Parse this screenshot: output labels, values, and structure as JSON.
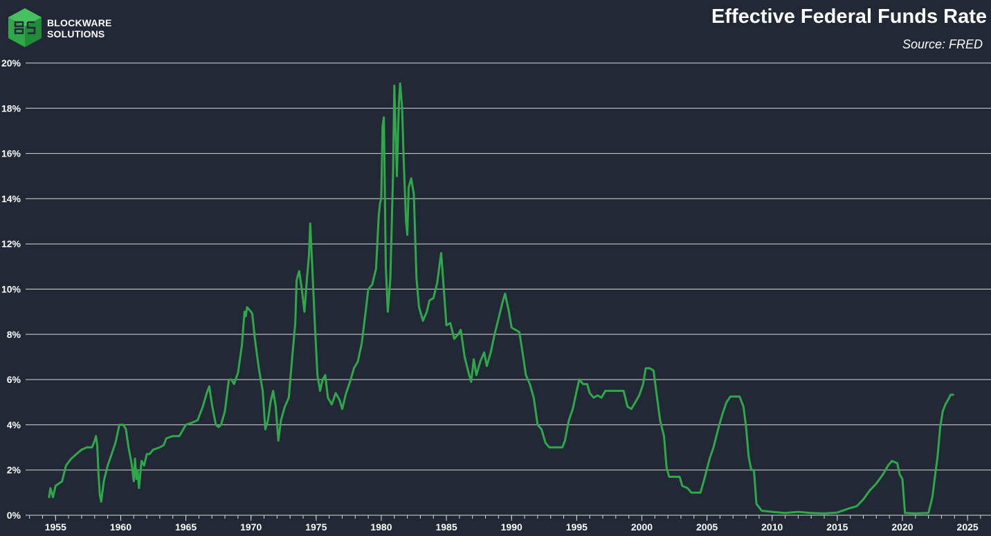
{
  "branding": {
    "line1": "BLOCKWARE",
    "line2": "SOLUTIONS"
  },
  "colors": {
    "background": "#222836",
    "line": "#2fa84a",
    "grid": "#d9d9d9",
    "logo": "#2fa84a",
    "text": "#ffffff"
  },
  "chart_data": {
    "type": "line",
    "title": "Effective Federal Funds Rate",
    "subtitle": "Source: FRED",
    "xlabel": "",
    "ylabel": "",
    "xlim": [
      1952.7,
      2026.8
    ],
    "ylim": [
      0,
      20
    ],
    "grid": true,
    "y_ticks": [
      0,
      2,
      4,
      6,
      8,
      10,
      12,
      14,
      16,
      18,
      20
    ],
    "y_tick_labels": [
      "0%",
      "2%",
      "4%",
      "6%",
      "8%",
      "10%",
      "12%",
      "14%",
      "16%",
      "18%",
      "20%"
    ],
    "x_ticks": [
      1955,
      1960,
      1965,
      1970,
      1975,
      1980,
      1985,
      1990,
      1995,
      2000,
      2005,
      2010,
      2015,
      2020,
      2025
    ],
    "x_tick_labels": [
      "1955",
      "1960",
      "1965",
      "1970",
      "1975",
      "1980",
      "1985",
      "1990",
      "1995",
      "2000",
      "2005",
      "2010",
      "2015",
      "2020",
      "2025"
    ],
    "series": [
      {
        "points": [
          [
            1954.5,
            0.8
          ],
          [
            1954.6,
            1.2
          ],
          [
            1954.8,
            0.8
          ],
          [
            1955.0,
            1.3
          ],
          [
            1955.5,
            1.5
          ],
          [
            1955.8,
            2.2
          ],
          [
            1956.2,
            2.5
          ],
          [
            1956.6,
            2.7
          ],
          [
            1957.0,
            2.9
          ],
          [
            1957.4,
            3.0
          ],
          [
            1957.8,
            3.0
          ],
          [
            1958.0,
            3.3
          ],
          [
            1958.1,
            3.5
          ],
          [
            1958.2,
            3.1
          ],
          [
            1958.3,
            1.8
          ],
          [
            1958.4,
            0.9
          ],
          [
            1958.5,
            0.6
          ],
          [
            1958.7,
            1.5
          ],
          [
            1959.0,
            2.2
          ],
          [
            1959.3,
            2.7
          ],
          [
            1959.6,
            3.2
          ],
          [
            1959.9,
            4.0
          ],
          [
            1960.2,
            4.0
          ],
          [
            1960.4,
            3.8
          ],
          [
            1960.6,
            3.0
          ],
          [
            1960.8,
            2.4
          ],
          [
            1960.9,
            2.0
          ],
          [
            1961.0,
            1.5
          ],
          [
            1961.1,
            2.5
          ],
          [
            1961.2,
            1.6
          ],
          [
            1961.3,
            2.0
          ],
          [
            1961.4,
            1.2
          ],
          [
            1961.6,
            2.4
          ],
          [
            1961.8,
            2.2
          ],
          [
            1962.0,
            2.7
          ],
          [
            1962.2,
            2.7
          ],
          [
            1962.5,
            2.9
          ],
          [
            1963.0,
            3.0
          ],
          [
            1963.3,
            3.1
          ],
          [
            1963.5,
            3.4
          ],
          [
            1964.0,
            3.5
          ],
          [
            1964.5,
            3.5
          ],
          [
            1965.0,
            4.0
          ],
          [
            1965.5,
            4.1
          ],
          [
            1965.9,
            4.2
          ],
          [
            1966.3,
            4.8
          ],
          [
            1966.6,
            5.4
          ],
          [
            1966.8,
            5.7
          ],
          [
            1967.0,
            4.9
          ],
          [
            1967.3,
            4.0
          ],
          [
            1967.5,
            3.9
          ],
          [
            1967.7,
            4.0
          ],
          [
            1968.0,
            4.6
          ],
          [
            1968.3,
            6.0
          ],
          [
            1968.5,
            6.0
          ],
          [
            1968.7,
            5.8
          ],
          [
            1969.0,
            6.3
          ],
          [
            1969.3,
            7.5
          ],
          [
            1969.5,
            9.0
          ],
          [
            1969.6,
            8.8
          ],
          [
            1969.7,
            9.2
          ],
          [
            1970.0,
            9.0
          ],
          [
            1970.1,
            8.9
          ],
          [
            1970.3,
            7.8
          ],
          [
            1970.6,
            6.5
          ],
          [
            1970.9,
            5.5
          ],
          [
            1971.1,
            3.8
          ],
          [
            1971.3,
            4.2
          ],
          [
            1971.5,
            5.0
          ],
          [
            1971.7,
            5.5
          ],
          [
            1971.9,
            4.8
          ],
          [
            1972.1,
            3.3
          ],
          [
            1972.3,
            4.2
          ],
          [
            1972.6,
            4.8
          ],
          [
            1972.9,
            5.2
          ],
          [
            1973.0,
            5.9
          ],
          [
            1973.2,
            7.2
          ],
          [
            1973.4,
            8.5
          ],
          [
            1973.5,
            10.4
          ],
          [
            1973.7,
            10.8
          ],
          [
            1973.9,
            10.0
          ],
          [
            1974.1,
            9.0
          ],
          [
            1974.3,
            10.5
          ],
          [
            1974.45,
            11.5
          ],
          [
            1974.55,
            12.9
          ],
          [
            1974.7,
            11.0
          ],
          [
            1974.9,
            8.5
          ],
          [
            1975.1,
            6.2
          ],
          [
            1975.3,
            5.5
          ],
          [
            1975.5,
            6.0
          ],
          [
            1975.7,
            6.2
          ],
          [
            1975.9,
            5.2
          ],
          [
            1976.2,
            4.9
          ],
          [
            1976.5,
            5.4
          ],
          [
            1976.8,
            5.1
          ],
          [
            1977.0,
            4.7
          ],
          [
            1977.3,
            5.4
          ],
          [
            1977.6,
            5.9
          ],
          [
            1977.9,
            6.5
          ],
          [
            1978.2,
            6.8
          ],
          [
            1978.5,
            7.6
          ],
          [
            1978.8,
            9.0
          ],
          [
            1979.0,
            10.0
          ],
          [
            1979.3,
            10.2
          ],
          [
            1979.6,
            10.9
          ],
          [
            1979.8,
            13.2
          ],
          [
            1979.9,
            13.8
          ],
          [
            1980.0,
            14.0
          ],
          [
            1980.1,
            17.2
          ],
          [
            1980.2,
            17.6
          ],
          [
            1980.35,
            11.0
          ],
          [
            1980.5,
            9.0
          ],
          [
            1980.7,
            10.5
          ],
          [
            1980.9,
            15.0
          ],
          [
            1981.0,
            19.0
          ],
          [
            1981.1,
            17.0
          ],
          [
            1981.2,
            15.0
          ],
          [
            1981.35,
            18.2
          ],
          [
            1981.45,
            19.1
          ],
          [
            1981.6,
            18.0
          ],
          [
            1981.7,
            16.0
          ],
          [
            1981.9,
            13.0
          ],
          [
            1982.0,
            12.4
          ],
          [
            1982.1,
            14.5
          ],
          [
            1982.3,
            14.9
          ],
          [
            1982.5,
            14.2
          ],
          [
            1982.7,
            10.5
          ],
          [
            1982.9,
            9.2
          ],
          [
            1983.2,
            8.6
          ],
          [
            1983.5,
            9.0
          ],
          [
            1983.7,
            9.5
          ],
          [
            1984.0,
            9.6
          ],
          [
            1984.3,
            10.3
          ],
          [
            1984.5,
            11.2
          ],
          [
            1984.6,
            11.6
          ],
          [
            1984.8,
            10.0
          ],
          [
            1985.0,
            8.4
          ],
          [
            1985.3,
            8.5
          ],
          [
            1985.6,
            7.8
          ],
          [
            1985.9,
            8.0
          ],
          [
            1986.1,
            8.2
          ],
          [
            1986.4,
            7.0
          ],
          [
            1986.7,
            6.3
          ],
          [
            1986.9,
            5.9
          ],
          [
            1987.1,
            6.9
          ],
          [
            1987.3,
            6.2
          ],
          [
            1987.6,
            6.8
          ],
          [
            1987.9,
            7.2
          ],
          [
            1988.1,
            6.6
          ],
          [
            1988.4,
            7.2
          ],
          [
            1988.7,
            8.0
          ],
          [
            1989.0,
            8.7
          ],
          [
            1989.3,
            9.4
          ],
          [
            1989.5,
            9.8
          ],
          [
            1989.8,
            9.0
          ],
          [
            1990.0,
            8.3
          ],
          [
            1990.3,
            8.2
          ],
          [
            1990.6,
            8.1
          ],
          [
            1990.9,
            7.0
          ],
          [
            1991.1,
            6.2
          ],
          [
            1991.4,
            5.8
          ],
          [
            1991.7,
            5.2
          ],
          [
            1992.0,
            4.0
          ],
          [
            1992.3,
            3.8
          ],
          [
            1992.6,
            3.2
          ],
          [
            1992.9,
            3.0
          ],
          [
            1993.2,
            3.0
          ],
          [
            1993.5,
            3.0
          ],
          [
            1993.9,
            3.0
          ],
          [
            1994.1,
            3.3
          ],
          [
            1994.4,
            4.2
          ],
          [
            1994.7,
            4.7
          ],
          [
            1995.0,
            5.5
          ],
          [
            1995.2,
            6.0
          ],
          [
            1995.5,
            5.8
          ],
          [
            1995.8,
            5.8
          ],
          [
            1996.0,
            5.4
          ],
          [
            1996.3,
            5.2
          ],
          [
            1996.6,
            5.3
          ],
          [
            1996.9,
            5.2
          ],
          [
            1997.2,
            5.5
          ],
          [
            1997.5,
            5.5
          ],
          [
            1997.9,
            5.5
          ],
          [
            1998.3,
            5.5
          ],
          [
            1998.6,
            5.5
          ],
          [
            1998.9,
            4.8
          ],
          [
            1999.2,
            4.7
          ],
          [
            1999.5,
            5.0
          ],
          [
            1999.8,
            5.3
          ],
          [
            2000.1,
            5.8
          ],
          [
            2000.3,
            6.5
          ],
          [
            2000.6,
            6.5
          ],
          [
            2000.9,
            6.4
          ],
          [
            2001.1,
            5.5
          ],
          [
            2001.4,
            4.2
          ],
          [
            2001.7,
            3.5
          ],
          [
            2001.9,
            2.1
          ],
          [
            2002.1,
            1.7
          ],
          [
            2002.5,
            1.7
          ],
          [
            2002.9,
            1.7
          ],
          [
            2003.1,
            1.3
          ],
          [
            2003.5,
            1.2
          ],
          [
            2003.8,
            1.0
          ],
          [
            2004.2,
            1.0
          ],
          [
            2004.5,
            1.0
          ],
          [
            2004.8,
            1.6
          ],
          [
            2005.2,
            2.5
          ],
          [
            2005.5,
            3.0
          ],
          [
            2005.9,
            3.9
          ],
          [
            2006.2,
            4.5
          ],
          [
            2006.5,
            5.0
          ],
          [
            2006.8,
            5.25
          ],
          [
            2007.2,
            5.25
          ],
          [
            2007.5,
            5.25
          ],
          [
            2007.8,
            4.8
          ],
          [
            2008.0,
            3.9
          ],
          [
            2008.2,
            2.6
          ],
          [
            2008.4,
            2.0
          ],
          [
            2008.6,
            2.0
          ],
          [
            2008.8,
            0.5
          ],
          [
            2009.2,
            0.2
          ],
          [
            2010.0,
            0.15
          ],
          [
            2011.0,
            0.1
          ],
          [
            2012.0,
            0.15
          ],
          [
            2013.0,
            0.1
          ],
          [
            2014.0,
            0.08
          ],
          [
            2015.0,
            0.12
          ],
          [
            2015.9,
            0.3
          ],
          [
            2016.5,
            0.4
          ],
          [
            2017.0,
            0.7
          ],
          [
            2017.5,
            1.1
          ],
          [
            2018.0,
            1.4
          ],
          [
            2018.5,
            1.8
          ],
          [
            2018.9,
            2.2
          ],
          [
            2019.2,
            2.4
          ],
          [
            2019.6,
            2.3
          ],
          [
            2019.8,
            1.8
          ],
          [
            2020.0,
            1.6
          ],
          [
            2020.2,
            0.1
          ],
          [
            2021.0,
            0.08
          ],
          [
            2022.0,
            0.1
          ],
          [
            2022.3,
            0.8
          ],
          [
            2022.5,
            1.7
          ],
          [
            2022.7,
            2.6
          ],
          [
            2022.9,
            3.9
          ],
          [
            2023.1,
            4.6
          ],
          [
            2023.3,
            4.9
          ],
          [
            2023.5,
            5.1
          ],
          [
            2023.7,
            5.33
          ],
          [
            2023.9,
            5.33
          ]
        ]
      }
    ]
  }
}
